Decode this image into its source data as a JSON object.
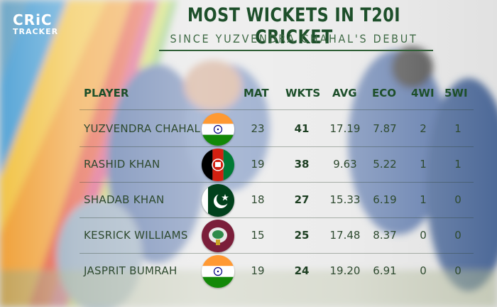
{
  "brand": {
    "line1": "CRiC",
    "line2": "TRACKER"
  },
  "title": "MOST WICKETS IN T20I CRICKET",
  "subtitle": "SINCE YUZVENDRA CHAHAL'S DEBUT",
  "headers": {
    "player": "PLAYER",
    "mat": "MAT",
    "wkts": "WKTS",
    "avg": "AVG",
    "eco": "ECO",
    "w4": "4WI",
    "w5": "5WI"
  },
  "rows": [
    {
      "player": "YUZVENDRA CHAHAL",
      "flag": "india-flag-icon",
      "mat": "23",
      "wkts": "41",
      "avg": "17.19",
      "eco": "7.87",
      "w4": "2",
      "w5": "1"
    },
    {
      "player": "RASHID KHAN",
      "flag": "afghanistan-flag-icon",
      "mat": "19",
      "wkts": "38",
      "avg": "9.63",
      "eco": "5.22",
      "w4": "1",
      "w5": "1"
    },
    {
      "player": "SHADAB KHAN",
      "flag": "pakistan-flag-icon",
      "mat": "18",
      "wkts": "27",
      "avg": "15.33",
      "eco": "6.19",
      "w4": "1",
      "w5": "0"
    },
    {
      "player": "KESRICK WILLIAMS",
      "flag": "west-indies-flag-icon",
      "mat": "15",
      "wkts": "25",
      "avg": "17.48",
      "eco": "8.37",
      "w4": "0",
      "w5": "0"
    },
    {
      "player": "JASPRIT BUMRAH",
      "flag": "india-flag-icon",
      "mat": "19",
      "wkts": "24",
      "avg": "19.20",
      "eco": "6.91",
      "w4": "0",
      "w5": "0"
    }
  ],
  "colors": {
    "heading": "#1d4f2a",
    "text": "#2e4a2f",
    "india_saffron": "#ff9933",
    "india_green": "#138808",
    "pakistan_green": "#01411c",
    "afghanistan_red": "#d32011",
    "west_indies_maroon": "#7b1e3a"
  }
}
